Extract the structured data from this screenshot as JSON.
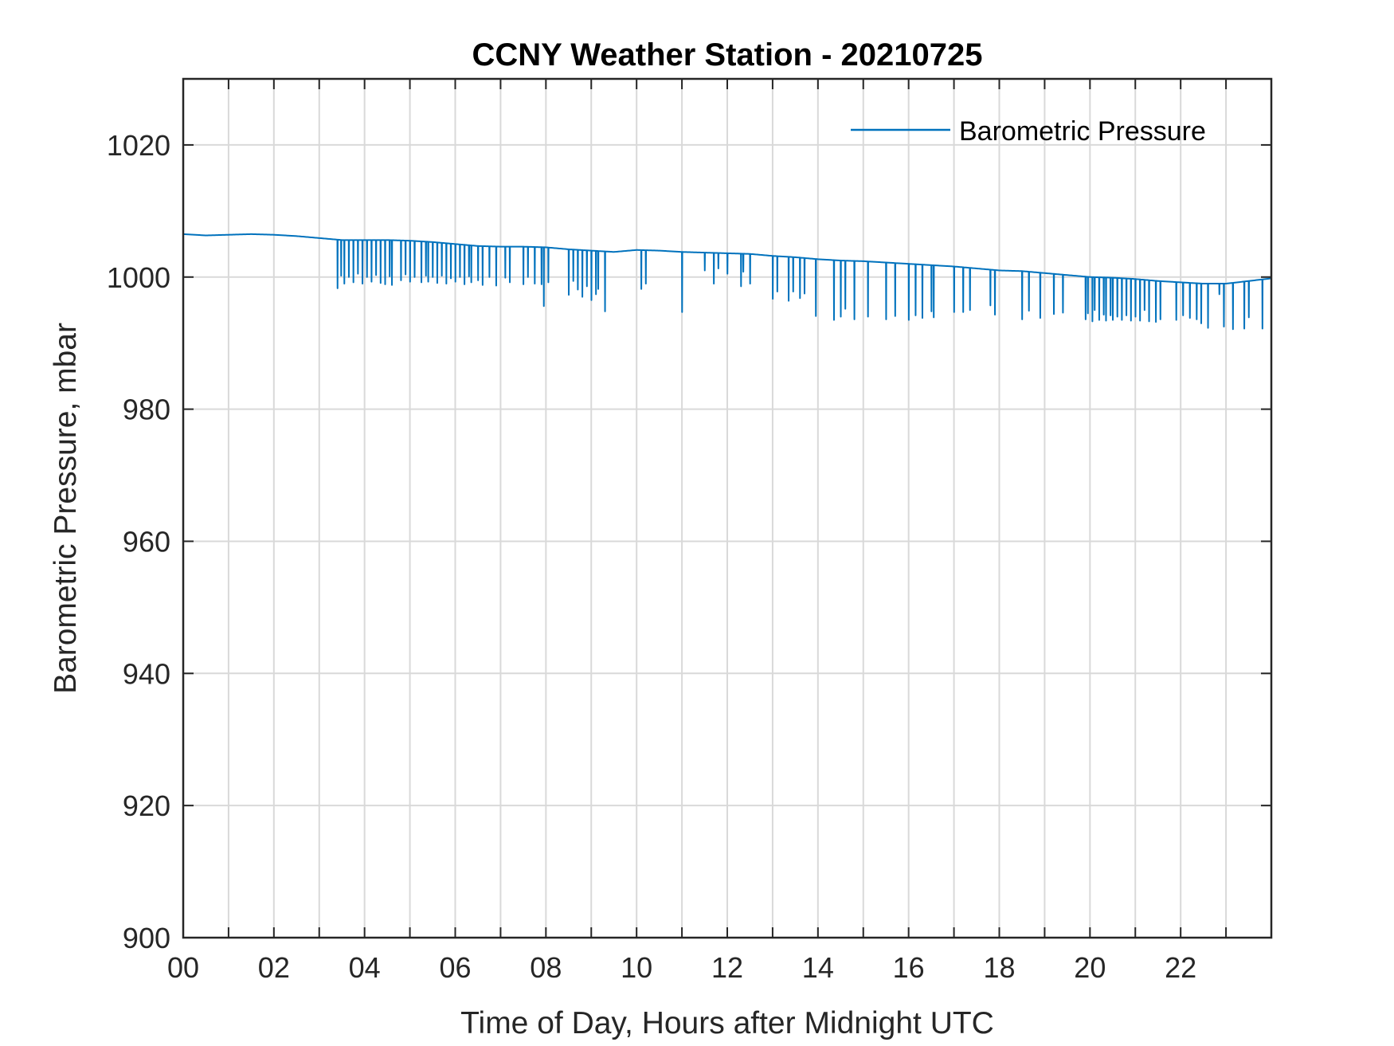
{
  "chart_data": {
    "type": "line",
    "title": "CCNY Weather Station - 20210725",
    "xlabel": "Time of Day, Hours after Midnight UTC",
    "ylabel": "Barometric Pressure, mbar",
    "xlim": [
      0,
      24
    ],
    "ylim": [
      900,
      1030
    ],
    "grid": true,
    "legend_position": "top-right",
    "x_ticks": [
      0,
      2,
      4,
      6,
      8,
      10,
      12,
      14,
      16,
      18,
      20,
      22
    ],
    "x_tick_labels": [
      "00",
      "02",
      "04",
      "06",
      "08",
      "10",
      "12",
      "14",
      "16",
      "18",
      "20",
      "22"
    ],
    "y_ticks": [
      900,
      920,
      940,
      960,
      980,
      1000,
      1020
    ],
    "y_tick_labels": [
      "900",
      "920",
      "940",
      "960",
      "980",
      "1000",
      "1020"
    ],
    "series": [
      {
        "name": "Barometric Pressure",
        "color": "#0072BD",
        "baseline": {
          "x": [
            0,
            0.5,
            1,
            1.5,
            2,
            2.5,
            3,
            3.5,
            4,
            4.5,
            5,
            5.5,
            6,
            6.5,
            7,
            7.5,
            8,
            8.5,
            9,
            9.5,
            10,
            10.5,
            11,
            11.5,
            12,
            12.5,
            13,
            13.5,
            14,
            14.5,
            15,
            15.5,
            16,
            16.5,
            17,
            17.5,
            18,
            18.5,
            19,
            19.5,
            20,
            20.5,
            21,
            21.5,
            22,
            22.5,
            23,
            23.5,
            24
          ],
          "y": [
            1006.5,
            1006.3,
            1006.4,
            1006.5,
            1006.4,
            1006.2,
            1005.9,
            1005.6,
            1005.6,
            1005.6,
            1005.5,
            1005.3,
            1005.0,
            1004.7,
            1004.6,
            1004.6,
            1004.5,
            1004.2,
            1004.0,
            1003.8,
            1004.1,
            1004.0,
            1003.8,
            1003.7,
            1003.6,
            1003.5,
            1003.2,
            1003.0,
            1002.7,
            1002.5,
            1002.4,
            1002.2,
            1002.0,
            1001.8,
            1001.6,
            1001.3,
            1001.0,
            1000.9,
            1000.6,
            1000.3,
            1000.0,
            999.9,
            999.7,
            999.4,
            999.2,
            999.0,
            999.0,
            999.4,
            999.8
          ]
        },
        "dips": [
          [
            3.4,
            998.3
          ],
          [
            3.48,
            1000.2
          ],
          [
            3.55,
            999.0
          ],
          [
            3.65,
            1000.0
          ],
          [
            3.75,
            999.2
          ],
          [
            3.85,
            1000.5
          ],
          [
            3.95,
            999.0
          ],
          [
            4.05,
            1000.0
          ],
          [
            4.15,
            999.3
          ],
          [
            4.25,
            1000.3
          ],
          [
            4.35,
            999.1
          ],
          [
            4.45,
            998.9
          ],
          [
            4.55,
            1000.1
          ],
          [
            4.6,
            998.8
          ],
          [
            4.8,
            999.5
          ],
          [
            4.9,
            1000.4
          ],
          [
            5.0,
            999.3
          ],
          [
            5.1,
            1000.0
          ],
          [
            5.25,
            999.2
          ],
          [
            5.35,
            1000.2
          ],
          [
            5.4,
            999.3
          ],
          [
            5.5,
            1000.0
          ],
          [
            5.6,
            999.1
          ],
          [
            5.7,
            1000.2
          ],
          [
            5.8,
            999.0
          ],
          [
            5.9,
            999.8
          ],
          [
            6.0,
            999.3
          ],
          [
            6.1,
            1000.0
          ],
          [
            6.2,
            998.9
          ],
          [
            6.3,
            1000.1
          ],
          [
            6.35,
            999.2
          ],
          [
            6.5,
            999.5
          ],
          [
            6.6,
            998.8
          ],
          [
            6.75,
            1000.0
          ],
          [
            6.9,
            998.7
          ],
          [
            7.1,
            999.9
          ],
          [
            7.2,
            999.2
          ],
          [
            7.5,
            998.9
          ],
          [
            7.6,
            1000.0
          ],
          [
            7.75,
            999.0
          ],
          [
            7.9,
            998.9
          ],
          [
            7.95,
            995.6
          ],
          [
            8.05,
            999.2
          ],
          [
            8.5,
            997.3
          ],
          [
            8.6,
            999.4
          ],
          [
            8.7,
            998.1
          ],
          [
            8.8,
            997.0
          ],
          [
            8.9,
            998.6
          ],
          [
            9.0,
            996.5
          ],
          [
            9.1,
            997.4
          ],
          [
            9.15,
            998.2
          ],
          [
            9.3,
            994.8
          ],
          [
            10.1,
            998.2
          ],
          [
            10.2,
            999.0
          ],
          [
            11.0,
            994.7
          ],
          [
            11.5,
            1001.0
          ],
          [
            11.7,
            999.0
          ],
          [
            11.8,
            1001.3
          ],
          [
            12.0,
            1000.5
          ],
          [
            12.3,
            998.6
          ],
          [
            12.35,
            1000.8
          ],
          [
            12.5,
            999.0
          ],
          [
            13.0,
            996.7
          ],
          [
            13.1,
            997.8
          ],
          [
            13.35,
            996.4
          ],
          [
            13.45,
            997.8
          ],
          [
            13.6,
            996.8
          ],
          [
            13.7,
            997.5
          ],
          [
            13.95,
            994.1
          ],
          [
            14.35,
            993.5
          ],
          [
            14.5,
            994.0
          ],
          [
            14.6,
            995.2
          ],
          [
            14.8,
            993.6
          ],
          [
            15.1,
            994.0
          ],
          [
            15.5,
            993.6
          ],
          [
            15.7,
            994.1
          ],
          [
            16.0,
            993.5
          ],
          [
            16.15,
            994.2
          ],
          [
            16.3,
            993.8
          ],
          [
            16.5,
            994.8
          ],
          [
            16.55,
            993.9
          ],
          [
            17.0,
            994.7
          ],
          [
            17.2,
            994.7
          ],
          [
            17.35,
            995.0
          ],
          [
            17.8,
            995.7
          ],
          [
            17.9,
            994.3
          ],
          [
            18.5,
            993.6
          ],
          [
            18.65,
            994.9
          ],
          [
            18.9,
            993.8
          ],
          [
            19.2,
            994.4
          ],
          [
            19.4,
            994.6
          ],
          [
            19.9,
            993.6
          ],
          [
            19.95,
            994.5
          ],
          [
            20.05,
            993.3
          ],
          [
            20.1,
            995.0
          ],
          [
            20.2,
            993.5
          ],
          [
            20.3,
            994.3
          ],
          [
            20.35,
            993.4
          ],
          [
            20.45,
            994.2
          ],
          [
            20.5,
            993.5
          ],
          [
            20.6,
            994.0
          ],
          [
            20.7,
            993.5
          ],
          [
            20.8,
            994.2
          ],
          [
            20.9,
            993.4
          ],
          [
            21.0,
            994.0
          ],
          [
            21.1,
            993.4
          ],
          [
            21.2,
            995.0
          ],
          [
            21.3,
            993.3
          ],
          [
            21.45,
            993.2
          ],
          [
            21.55,
            993.6
          ],
          [
            21.9,
            993.5
          ],
          [
            22.05,
            994.2
          ],
          [
            22.2,
            993.8
          ],
          [
            22.35,
            993.6
          ],
          [
            22.45,
            993.0
          ],
          [
            22.6,
            992.3
          ],
          [
            22.85,
            997.4
          ],
          [
            22.95,
            992.5
          ],
          [
            23.15,
            992.1
          ],
          [
            23.4,
            992.2
          ],
          [
            23.5,
            993.9
          ],
          [
            23.8,
            992.2
          ]
        ]
      }
    ]
  }
}
